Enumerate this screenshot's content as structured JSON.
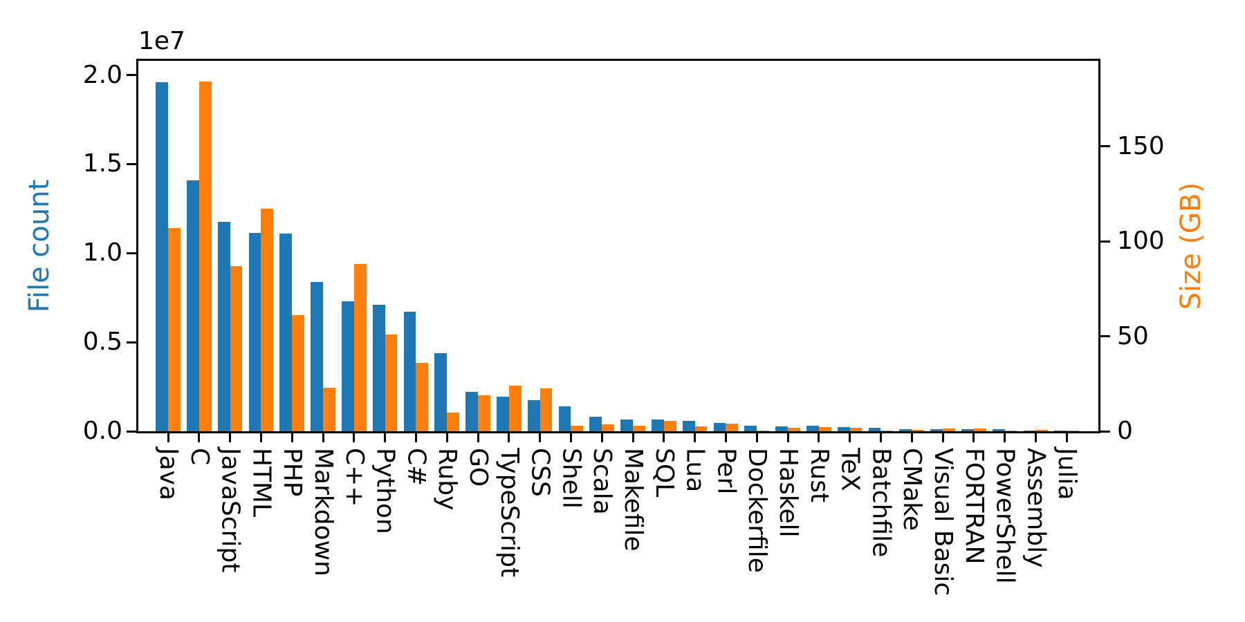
{
  "figure": {
    "background": "#ffffff"
  },
  "chart_data": {
    "type": "bar",
    "title": "",
    "grid": false,
    "legend": "none",
    "categories": [
      "Java",
      "C",
      "JavaScript",
      "HTML",
      "PHP",
      "Markdown",
      "C++",
      "Python",
      "C#",
      "Ruby",
      "GO",
      "TypeScript",
      "CSS",
      "Shell",
      "Scala",
      "Makefile",
      "SQL",
      "Lua",
      "Perl",
      "Dockerfile",
      "Haskell",
      "Rust",
      "TeX",
      "Batchfile",
      "CMake",
      "Visual Basic",
      "FORTRAN",
      "PowerShell",
      "Assembly",
      "Julia"
    ],
    "series": [
      {
        "name": "File count",
        "axis": "left",
        "color": "#1f77b4",
        "values": [
          19600000,
          14100000,
          11750000,
          11150000,
          11100000,
          8400000,
          7300000,
          7100000,
          6700000,
          4400000,
          2200000,
          1950000,
          1750000,
          1400000,
          820000,
          650000,
          660000,
          600000,
          460000,
          310000,
          280000,
          310000,
          220000,
          190000,
          120000,
          100000,
          100000,
          100000,
          50000,
          30000
        ]
      },
      {
        "name": "Size (GB)",
        "axis": "right",
        "color": "#ff7f0e",
        "values": [
          107,
          184,
          87,
          117,
          61,
          23,
          88,
          51,
          36,
          10,
          19,
          24,
          22.5,
          3,
          3.7,
          2.9,
          5.4,
          2.5,
          4.1,
          0.4,
          1.7,
          2.2,
          1.9,
          0.5,
          0.7,
          1.6,
          1.3,
          0.3,
          0.6,
          0.2
        ]
      }
    ],
    "left_axis": {
      "label": "File count",
      "color": "#1f77b4",
      "offset_label": "1e7",
      "tick_values": [
        0,
        5000000,
        10000000,
        15000000,
        20000000
      ],
      "tick_labels": [
        "0.0",
        "0.5",
        "1.0",
        "1.5",
        "2.0"
      ],
      "range": [
        0,
        20800000
      ]
    },
    "right_axis": {
      "label": "Size (GB)",
      "color": "#ff7f0e",
      "tick_values": [
        0,
        50,
        100,
        150
      ],
      "tick_labels": [
        "0",
        "50",
        "100",
        "150"
      ],
      "range": [
        0,
        195
      ]
    },
    "x_axis": {
      "tick_label_orientation": "vertical"
    }
  }
}
